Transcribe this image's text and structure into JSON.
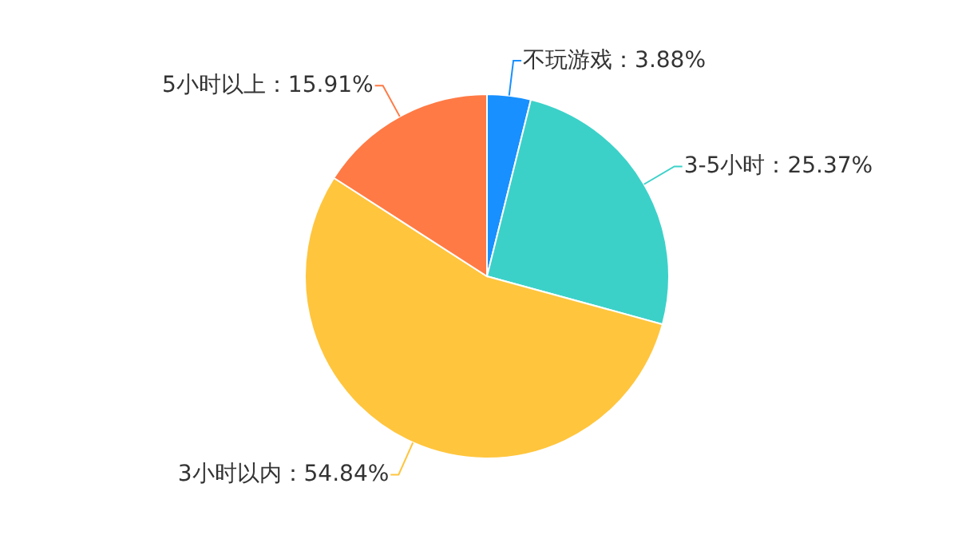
{
  "chart_data": {
    "type": "pie",
    "categories": [
      "不玩游戏",
      "3-5小时",
      "3小时以内",
      "5小时以上"
    ],
    "values": [
      3.88,
      25.37,
      54.84,
      15.91
    ],
    "value_labels": [
      "3.88%",
      "25.37%",
      "54.84%",
      "15.91%"
    ],
    "colors": [
      "#1890ff",
      "#3bd1c9",
      "#ffc53d",
      "#ff7a45"
    ]
  }
}
